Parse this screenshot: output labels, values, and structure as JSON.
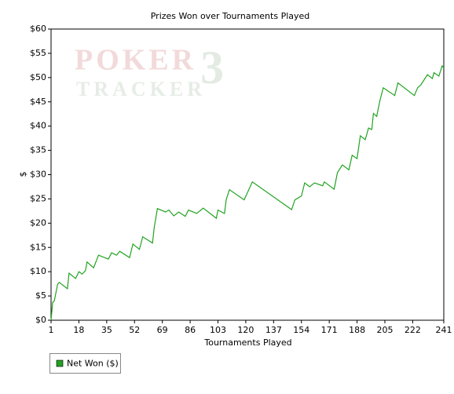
{
  "chart_data": {
    "type": "line",
    "title": "Prizes Won over Tournaments Played",
    "x_label": "Tournaments Played",
    "y_label": "$",
    "watermark": [
      "POKER",
      "3",
      "TRACKER"
    ],
    "x": [
      1,
      2,
      3,
      5,
      6,
      11,
      12,
      16,
      18,
      20,
      22,
      23,
      27,
      30,
      36,
      38,
      41,
      43,
      49,
      51,
      55,
      57,
      63,
      64,
      66,
      71,
      73,
      76,
      79,
      83,
      85,
      90,
      94,
      102,
      103,
      107,
      108,
      110,
      119,
      124,
      148,
      150,
      154,
      156,
      159,
      162,
      167,
      168,
      174,
      176,
      179,
      183,
      185,
      188,
      190,
      193,
      195,
      197,
      198,
      200,
      202,
      204,
      211,
      213,
      223,
      225,
      227,
      231,
      234,
      235,
      238,
      240,
      241
    ],
    "series": [
      {
        "name": "Net Won ($)",
        "color": "#22a322",
        "values": [
          0,
          3.7,
          4,
          7.4,
          7.8,
          6.5,
          9.7,
          8.6,
          10,
          9.5,
          10.2,
          12,
          10.8,
          13.4,
          12.6,
          13.9,
          13.4,
          14.2,
          12.9,
          15.7,
          14.6,
          17.2,
          15.9,
          19,
          23,
          22.3,
          22.7,
          21.5,
          22.3,
          21.4,
          22.7,
          22,
          23.1,
          21,
          22.7,
          22,
          24.8,
          26.9,
          24.8,
          28.5,
          22.8,
          24.8,
          25.6,
          28.3,
          27.5,
          28.3,
          27.7,
          28.5,
          27,
          30.4,
          32,
          31,
          34,
          33.3,
          38,
          37.2,
          39.6,
          39.3,
          42.6,
          42,
          45.3,
          47.9,
          46.3,
          48.9,
          46.3,
          47.9,
          48.5,
          50.6,
          49.8,
          51,
          50.3,
          52.4,
          52
        ]
      }
    ],
    "xlim": [
      1,
      241
    ],
    "xticks": [
      1,
      18,
      35,
      52,
      69,
      86,
      103,
      120,
      137,
      154,
      171,
      188,
      205,
      222,
      241
    ],
    "ylim": [
      0,
      60
    ],
    "yticks": [
      {
        "value": 0,
        "label": "$0"
      },
      {
        "value": 5,
        "label": "$5"
      },
      {
        "value": 10,
        "label": "$10"
      },
      {
        "value": 15,
        "label": "$15"
      },
      {
        "value": 20,
        "label": "$20"
      },
      {
        "value": 25,
        "label": "$25"
      },
      {
        "value": 30,
        "label": "$30"
      },
      {
        "value": 35,
        "label": "$35"
      },
      {
        "value": 40,
        "label": "$40"
      },
      {
        "value": 45,
        "label": "$45"
      },
      {
        "value": 50,
        "label": "$50"
      },
      {
        "value": 55,
        "label": "$55"
      },
      {
        "value": 60,
        "label": "$60"
      }
    ],
    "grid": false
  }
}
